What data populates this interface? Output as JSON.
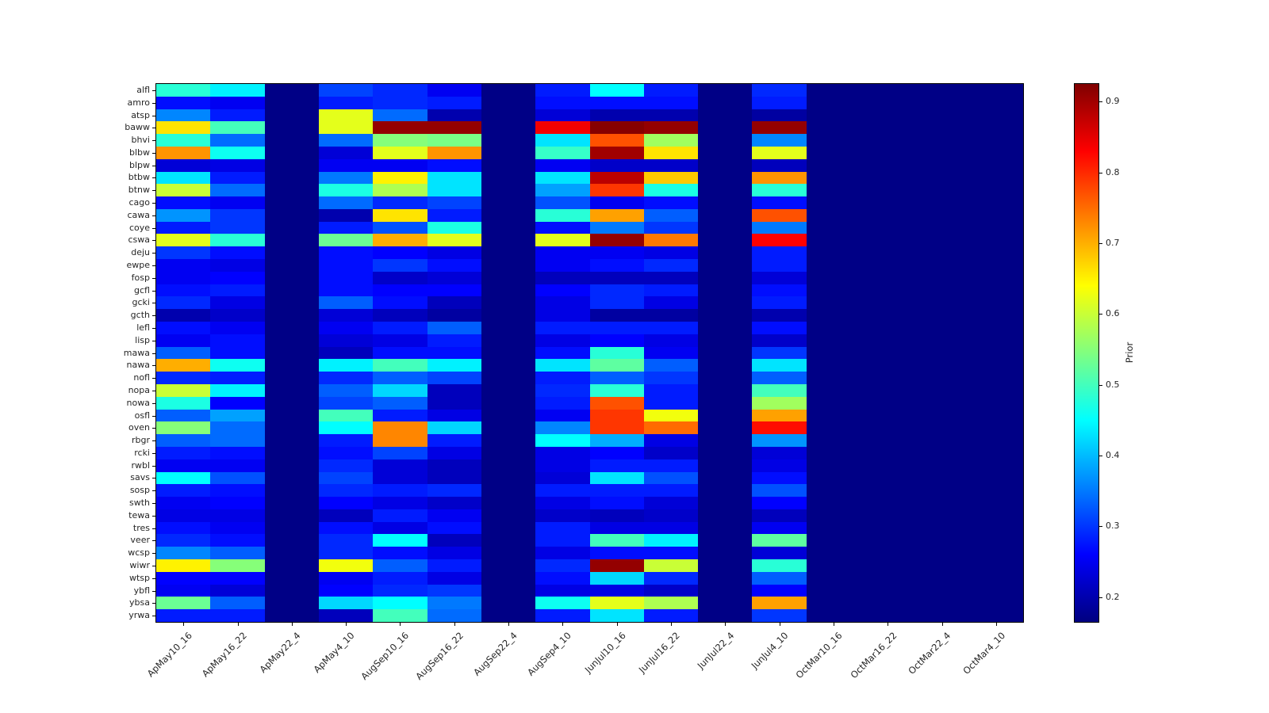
{
  "chart_data": {
    "type": "heatmap",
    "title": "",
    "xlabel": "",
    "ylabel": "",
    "colormap": "jet",
    "vmin": 0.165,
    "vmax": 0.925,
    "grid": false,
    "xtick_rotation": 45,
    "colorbar": {
      "label": "Prior",
      "ticks": [
        0.2,
        0.3,
        0.4,
        0.5,
        0.6,
        0.7,
        0.8,
        0.9
      ],
      "position": "right"
    },
    "x_categories": [
      "ApMay10_16",
      "ApMay16_22",
      "ApMay22_4",
      "ApMay4_10",
      "AugSep10_16",
      "AugSep16_22",
      "AugSep22_4",
      "AugSep4_10",
      "JunJul10_16",
      "JunJul16_22",
      "JunJul22_4",
      "JunJul4_10",
      "OctMar10_16",
      "OctMar16_22",
      "OctMar22_4",
      "OctMar4_10"
    ],
    "y_categories": [
      "alfl",
      "amro",
      "atsp",
      "baww",
      "bhvi",
      "blbw",
      "blpw",
      "btbw",
      "btnw",
      "cago",
      "cawa",
      "coye",
      "cswa",
      "deju",
      "ewpe",
      "fosp",
      "gcfl",
      "gcki",
      "gcth",
      "lefl",
      "lisp",
      "mawa",
      "nawa",
      "nofl",
      "nopa",
      "nowa",
      "osfl",
      "oven",
      "rbgr",
      "rcki",
      "rwbl",
      "savs",
      "sosp",
      "swth",
      "tewa",
      "tres",
      "veer",
      "wcsp",
      "wiwr",
      "wtsp",
      "ybfl",
      "ybsa",
      "yrwa"
    ],
    "values": [
      [
        0.48,
        0.44,
        0.17,
        0.31,
        0.29,
        0.25,
        0.17,
        0.28,
        0.45,
        0.28,
        0.17,
        0.29,
        0.17,
        0.17,
        0.17,
        0.17
      ],
      [
        0.27,
        0.25,
        0.17,
        0.28,
        0.29,
        0.28,
        0.17,
        0.27,
        0.27,
        0.27,
        0.17,
        0.28,
        0.17,
        0.17,
        0.17,
        0.17
      ],
      [
        0.36,
        0.28,
        0.17,
        0.62,
        0.34,
        0.2,
        0.17,
        0.23,
        0.2,
        0.2,
        0.17,
        0.19,
        0.17,
        0.17,
        0.17,
        0.17
      ],
      [
        0.66,
        0.5,
        0.17,
        0.62,
        0.91,
        0.91,
        0.17,
        0.84,
        0.92,
        0.91,
        0.17,
        0.91,
        0.17,
        0.17,
        0.17,
        0.17
      ],
      [
        0.48,
        0.34,
        0.17,
        0.34,
        0.55,
        0.54,
        0.17,
        0.43,
        0.77,
        0.57,
        0.17,
        0.36,
        0.17,
        0.17,
        0.17,
        0.17
      ],
      [
        0.72,
        0.46,
        0.17,
        0.23,
        0.62,
        0.72,
        0.17,
        0.49,
        0.9,
        0.66,
        0.17,
        0.62,
        0.17,
        0.17,
        0.17,
        0.17
      ],
      [
        0.23,
        0.24,
        0.17,
        0.25,
        0.25,
        0.27,
        0.17,
        0.25,
        0.22,
        0.22,
        0.17,
        0.21,
        0.17,
        0.17,
        0.17,
        0.17
      ],
      [
        0.43,
        0.28,
        0.17,
        0.35,
        0.65,
        0.43,
        0.17,
        0.43,
        0.88,
        0.68,
        0.17,
        0.72,
        0.17,
        0.17,
        0.17,
        0.17
      ],
      [
        0.6,
        0.34,
        0.17,
        0.47,
        0.58,
        0.43,
        0.17,
        0.38,
        0.79,
        0.47,
        0.17,
        0.48,
        0.17,
        0.17,
        0.17,
        0.17
      ],
      [
        0.27,
        0.25,
        0.17,
        0.34,
        0.29,
        0.31,
        0.17,
        0.32,
        0.25,
        0.27,
        0.17,
        0.27,
        0.17,
        0.17,
        0.17,
        0.17
      ],
      [
        0.37,
        0.3,
        0.17,
        0.2,
        0.66,
        0.28,
        0.17,
        0.48,
        0.71,
        0.33,
        0.17,
        0.77,
        0.17,
        0.17,
        0.17,
        0.17
      ],
      [
        0.28,
        0.3,
        0.17,
        0.28,
        0.32,
        0.47,
        0.17,
        0.27,
        0.35,
        0.3,
        0.17,
        0.35,
        0.17,
        0.17,
        0.17,
        0.17
      ],
      [
        0.62,
        0.48,
        0.17,
        0.53,
        0.7,
        0.62,
        0.17,
        0.62,
        0.91,
        0.74,
        0.17,
        0.83,
        0.17,
        0.17,
        0.17,
        0.17
      ],
      [
        0.3,
        0.27,
        0.17,
        0.27,
        0.26,
        0.24,
        0.17,
        0.25,
        0.25,
        0.24,
        0.17,
        0.28,
        0.17,
        0.17,
        0.17,
        0.17
      ],
      [
        0.25,
        0.24,
        0.17,
        0.27,
        0.3,
        0.27,
        0.17,
        0.25,
        0.27,
        0.29,
        0.17,
        0.28,
        0.17,
        0.17,
        0.17,
        0.17
      ],
      [
        0.25,
        0.26,
        0.17,
        0.27,
        0.22,
        0.23,
        0.17,
        0.21,
        0.21,
        0.21,
        0.17,
        0.23,
        0.17,
        0.17,
        0.17,
        0.17
      ],
      [
        0.27,
        0.28,
        0.17,
        0.27,
        0.26,
        0.26,
        0.17,
        0.26,
        0.29,
        0.28,
        0.17,
        0.27,
        0.17,
        0.17,
        0.17,
        0.17
      ],
      [
        0.29,
        0.24,
        0.17,
        0.33,
        0.27,
        0.21,
        0.17,
        0.24,
        0.29,
        0.24,
        0.17,
        0.28,
        0.17,
        0.17,
        0.17,
        0.17
      ],
      [
        0.2,
        0.22,
        0.17,
        0.23,
        0.21,
        0.19,
        0.17,
        0.24,
        0.19,
        0.19,
        0.17,
        0.2,
        0.17,
        0.17,
        0.17,
        0.17
      ],
      [
        0.27,
        0.25,
        0.17,
        0.25,
        0.28,
        0.33,
        0.17,
        0.28,
        0.28,
        0.28,
        0.17,
        0.27,
        0.17,
        0.17,
        0.17,
        0.17
      ],
      [
        0.25,
        0.27,
        0.17,
        0.23,
        0.24,
        0.28,
        0.17,
        0.24,
        0.26,
        0.24,
        0.17,
        0.22,
        0.17,
        0.17,
        0.17,
        0.17
      ],
      [
        0.33,
        0.27,
        0.17,
        0.21,
        0.27,
        0.27,
        0.17,
        0.27,
        0.48,
        0.25,
        0.17,
        0.3,
        0.17,
        0.17,
        0.17,
        0.17
      ],
      [
        0.7,
        0.46,
        0.17,
        0.44,
        0.5,
        0.44,
        0.17,
        0.43,
        0.52,
        0.33,
        0.17,
        0.43,
        0.17,
        0.17,
        0.17,
        0.17
      ],
      [
        0.29,
        0.28,
        0.17,
        0.29,
        0.33,
        0.31,
        0.17,
        0.28,
        0.33,
        0.3,
        0.17,
        0.33,
        0.17,
        0.17,
        0.17,
        0.17
      ],
      [
        0.6,
        0.44,
        0.17,
        0.33,
        0.42,
        0.21,
        0.17,
        0.29,
        0.48,
        0.28,
        0.17,
        0.5,
        0.17,
        0.17,
        0.17,
        0.17
      ],
      [
        0.47,
        0.26,
        0.17,
        0.31,
        0.33,
        0.21,
        0.17,
        0.28,
        0.77,
        0.28,
        0.17,
        0.57,
        0.17,
        0.17,
        0.17,
        0.17
      ],
      [
        0.33,
        0.38,
        0.17,
        0.5,
        0.28,
        0.24,
        0.17,
        0.25,
        0.79,
        0.63,
        0.17,
        0.71,
        0.17,
        0.17,
        0.17,
        0.17
      ],
      [
        0.55,
        0.34,
        0.17,
        0.45,
        0.73,
        0.42,
        0.17,
        0.36,
        0.79,
        0.75,
        0.17,
        0.82,
        0.17,
        0.17,
        0.17,
        0.17
      ],
      [
        0.33,
        0.34,
        0.17,
        0.28,
        0.73,
        0.28,
        0.17,
        0.45,
        0.39,
        0.24,
        0.17,
        0.37,
        0.17,
        0.17,
        0.17,
        0.17
      ],
      [
        0.28,
        0.27,
        0.17,
        0.27,
        0.31,
        0.24,
        0.17,
        0.24,
        0.26,
        0.22,
        0.17,
        0.23,
        0.17,
        0.17,
        0.17,
        0.17
      ],
      [
        0.25,
        0.25,
        0.17,
        0.29,
        0.23,
        0.21,
        0.17,
        0.24,
        0.28,
        0.28,
        0.17,
        0.24,
        0.17,
        0.17,
        0.17,
        0.17
      ],
      [
        0.45,
        0.32,
        0.17,
        0.31,
        0.23,
        0.21,
        0.17,
        0.23,
        0.43,
        0.32,
        0.17,
        0.27,
        0.17,
        0.17,
        0.17,
        0.17
      ],
      [
        0.28,
        0.27,
        0.17,
        0.29,
        0.28,
        0.29,
        0.17,
        0.28,
        0.28,
        0.28,
        0.17,
        0.32,
        0.17,
        0.17,
        0.17,
        0.17
      ],
      [
        0.25,
        0.26,
        0.17,
        0.26,
        0.24,
        0.22,
        0.17,
        0.24,
        0.27,
        0.23,
        0.17,
        0.26,
        0.17,
        0.17,
        0.17,
        0.17
      ],
      [
        0.24,
        0.24,
        0.17,
        0.21,
        0.28,
        0.25,
        0.17,
        0.22,
        0.21,
        0.22,
        0.17,
        0.21,
        0.17,
        0.17,
        0.17,
        0.17
      ],
      [
        0.27,
        0.25,
        0.17,
        0.27,
        0.24,
        0.27,
        0.17,
        0.28,
        0.24,
        0.24,
        0.17,
        0.25,
        0.17,
        0.17,
        0.17,
        0.17
      ],
      [
        0.29,
        0.27,
        0.17,
        0.29,
        0.45,
        0.21,
        0.17,
        0.28,
        0.5,
        0.44,
        0.17,
        0.52,
        0.17,
        0.17,
        0.17,
        0.17
      ],
      [
        0.36,
        0.33,
        0.17,
        0.29,
        0.27,
        0.24,
        0.17,
        0.24,
        0.27,
        0.27,
        0.17,
        0.23,
        0.17,
        0.17,
        0.17,
        0.17
      ],
      [
        0.65,
        0.55,
        0.17,
        0.63,
        0.33,
        0.28,
        0.17,
        0.29,
        0.91,
        0.6,
        0.17,
        0.48,
        0.17,
        0.17,
        0.17,
        0.17
      ],
      [
        0.26,
        0.26,
        0.17,
        0.25,
        0.28,
        0.24,
        0.17,
        0.27,
        0.42,
        0.29,
        0.17,
        0.33,
        0.17,
        0.17,
        0.17,
        0.17
      ],
      [
        0.25,
        0.23,
        0.17,
        0.26,
        0.29,
        0.3,
        0.17,
        0.24,
        0.24,
        0.22,
        0.17,
        0.26,
        0.17,
        0.17,
        0.17,
        0.17
      ],
      [
        0.53,
        0.33,
        0.17,
        0.42,
        0.45,
        0.35,
        0.17,
        0.46,
        0.62,
        0.58,
        0.17,
        0.71,
        0.17,
        0.17,
        0.17,
        0.17
      ],
      [
        0.28,
        0.28,
        0.17,
        0.21,
        0.5,
        0.34,
        0.17,
        0.28,
        0.43,
        0.28,
        0.17,
        0.3,
        0.17,
        0.17,
        0.17,
        0.17
      ]
    ]
  }
}
